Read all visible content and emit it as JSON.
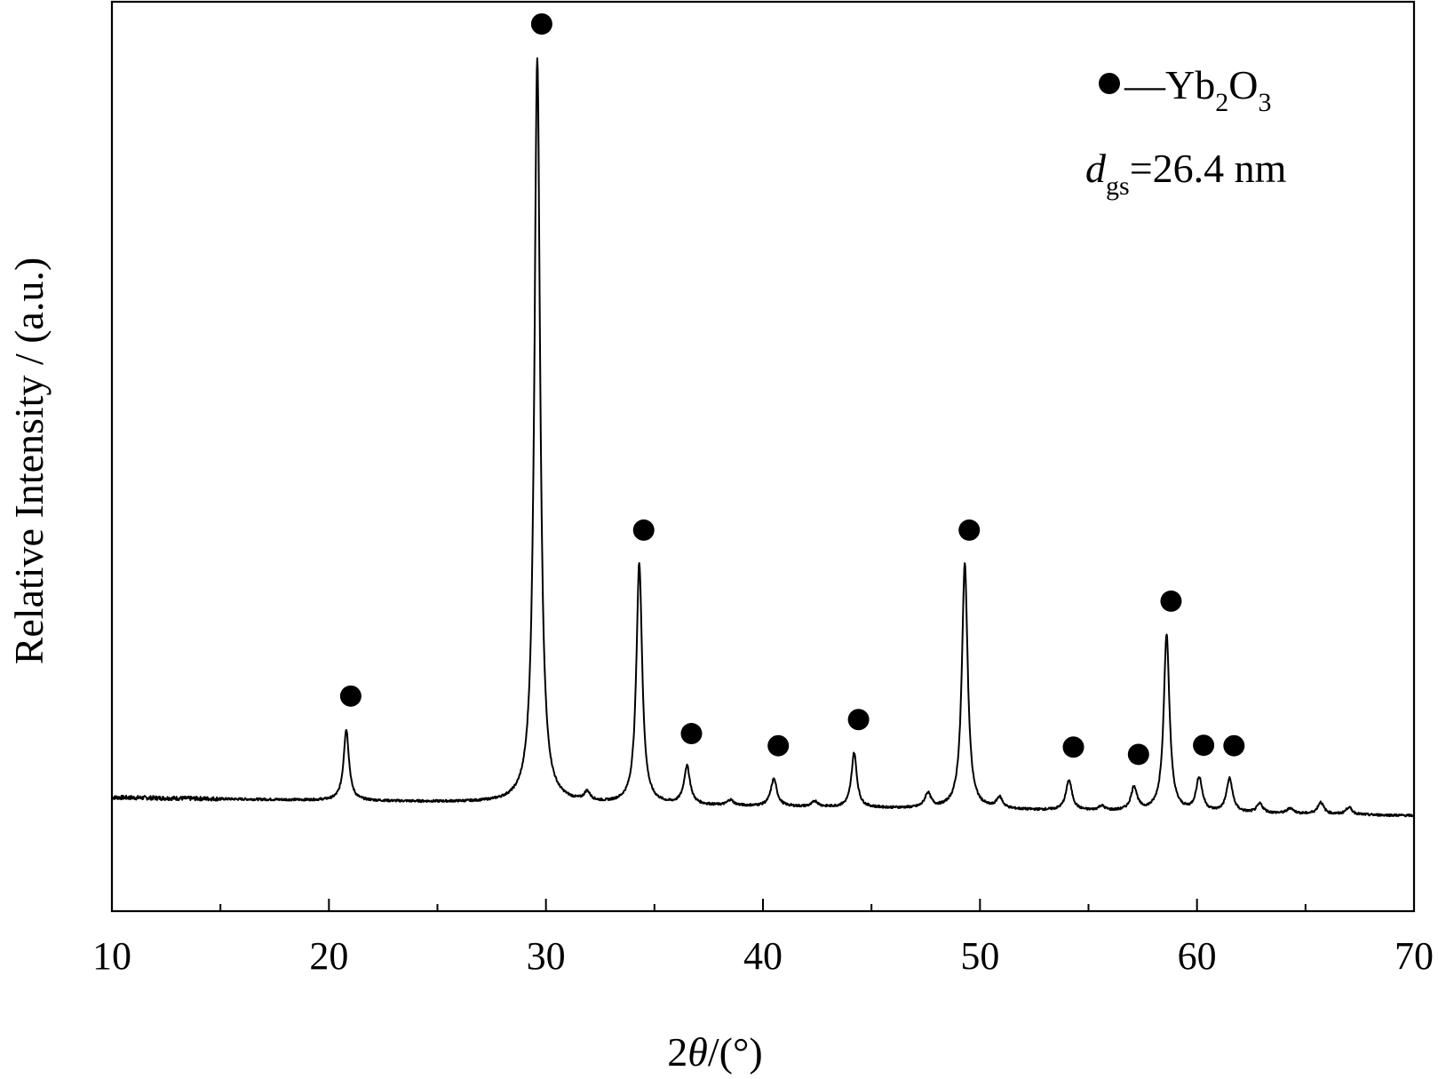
{
  "chart_data": {
    "type": "line",
    "xlabel_num": "2",
    "xlabel_sym": "θ",
    "xlabel_unit": "/(°)",
    "ylabel": "Relative Intensity / (a.u.)",
    "xlim": [
      10,
      70
    ],
    "ylim": [
      0,
      100
    ],
    "x_ticks": [
      10,
      20,
      30,
      40,
      50,
      60,
      70
    ],
    "y_ticks_shown": false,
    "grid": false,
    "legend": {
      "placement": "top-right",
      "marker": "filled-circle",
      "dash": "—",
      "phase_main": "Yb",
      "phase_sub1": "2",
      "phase_mid": "O",
      "phase_sub2": "3",
      "size_var": "d",
      "size_sub": "gs",
      "size_value": "=26.4 nm"
    },
    "baseline": {
      "start_x": 10,
      "start_y": 12.5,
      "end_x": 70,
      "end_y": 10.5
    },
    "series": [
      {
        "peaks": [
          {
            "x": 20.8,
            "height": 7.8,
            "marked": true
          },
          {
            "x": 29.6,
            "height": 82.0,
            "marked": true
          },
          {
            "x": 31.9,
            "height": 1.0,
            "marked": false
          },
          {
            "x": 34.3,
            "height": 26.5,
            "marked": true
          },
          {
            "x": 36.5,
            "height": 4.2,
            "marked": true
          },
          {
            "x": 38.5,
            "height": 0.6,
            "marked": false
          },
          {
            "x": 40.5,
            "height": 3.0,
            "marked": true
          },
          {
            "x": 42.4,
            "height": 0.6,
            "marked": false
          },
          {
            "x": 44.2,
            "height": 6.0,
            "marked": true
          },
          {
            "x": 47.6,
            "height": 1.6,
            "marked": false
          },
          {
            "x": 49.3,
            "height": 27.0,
            "marked": true
          },
          {
            "x": 50.9,
            "height": 1.2,
            "marked": false
          },
          {
            "x": 54.1,
            "height": 3.3,
            "marked": true
          },
          {
            "x": 55.6,
            "height": 0.5,
            "marked": false
          },
          {
            "x": 57.1,
            "height": 2.6,
            "marked": true
          },
          {
            "x": 58.6,
            "height": 19.5,
            "marked": true
          },
          {
            "x": 60.1,
            "height": 3.7,
            "marked": true
          },
          {
            "x": 61.5,
            "height": 3.7,
            "marked": true
          },
          {
            "x": 62.9,
            "height": 1.0,
            "marked": false
          },
          {
            "x": 64.3,
            "height": 0.6,
            "marked": false
          },
          {
            "x": 65.7,
            "height": 1.3,
            "marked": false
          },
          {
            "x": 67.0,
            "height": 0.8,
            "marked": false
          }
        ]
      }
    ]
  }
}
